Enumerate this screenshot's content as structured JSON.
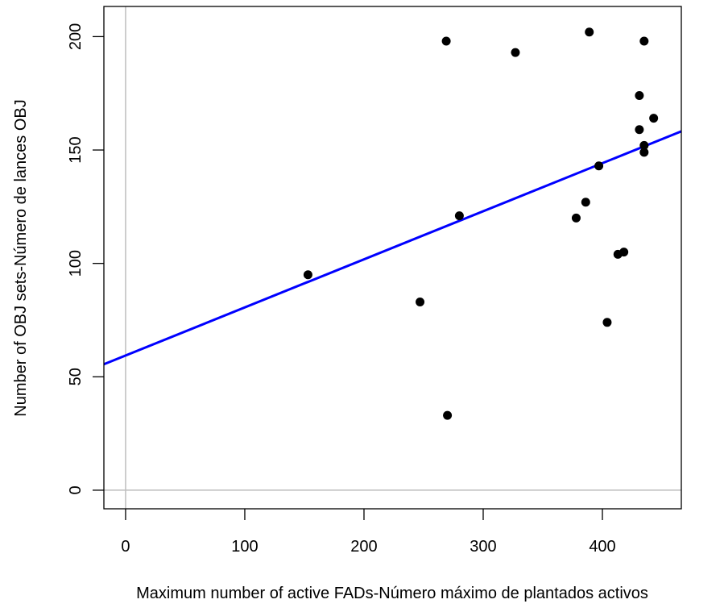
{
  "chart_data": {
    "type": "scatter",
    "x_label": "Maximum number of active FADs-Número máximo de plantados activos",
    "y_label": "Number of OBJ sets-Número de lances OBJ",
    "x": [
      153,
      247,
      269,
      270,
      280,
      327,
      378,
      386,
      389,
      397,
      404,
      413,
      418,
      431,
      431,
      435,
      435,
      435,
      443
    ],
    "values": [
      95,
      83,
      198,
      33,
      121,
      193,
      120,
      127,
      202,
      143,
      74,
      104,
      105,
      174,
      159,
      198,
      152,
      149,
      164
    ],
    "color": "#000000",
    "xlim": [
      -18.2,
      466.2
    ],
    "ylim": [
      -8.2,
      213.3
    ],
    "xticks": [
      0,
      100,
      200,
      300,
      400
    ],
    "yticks": [
      0,
      50,
      100,
      150,
      200
    ],
    "regression": {
      "intercept": 59.4,
      "slope": 0.212,
      "color": "#0000ff"
    },
    "reference_lines": {
      "x": 0,
      "y": 0,
      "color": "#bebebe"
    }
  }
}
